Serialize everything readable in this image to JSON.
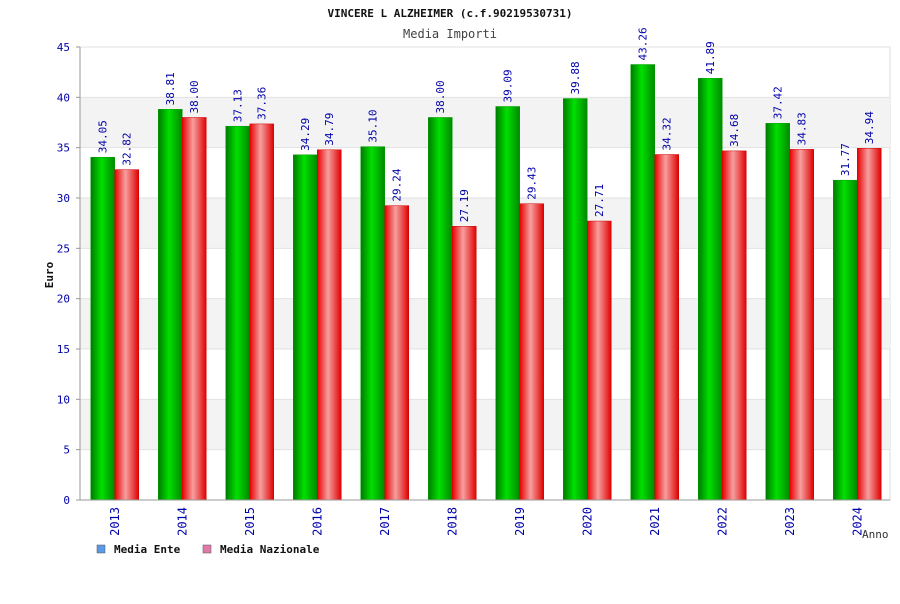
{
  "chart_data": {
    "type": "bar",
    "title": "VINCERE L ALZHEIMER (c.f.90219530731)",
    "subtitle": "Media Importi",
    "xlabel": "Anno",
    "ylabel": "Euro",
    "ylim": [
      0,
      45
    ],
    "yticks": [
      0,
      5,
      10,
      15,
      20,
      25,
      30,
      35,
      40,
      45
    ],
    "grid": true,
    "legend_position": "bottom-left",
    "categories": [
      "2013",
      "2014",
      "2015",
      "2016",
      "2017",
      "2018",
      "2019",
      "2020",
      "2021",
      "2022",
      "2023",
      "2024"
    ],
    "series": [
      {
        "name": "Media Ente",
        "color": "#00b000",
        "legend_color": "#5a9ae6",
        "values": [
          34.05,
          38.81,
          37.13,
          34.29,
          35.1,
          38.0,
          39.09,
          39.88,
          43.26,
          41.89,
          37.42,
          31.77
        ],
        "labels": [
          "34.05",
          "38.81",
          "37.13",
          "34.29",
          "35.10",
          "38.00",
          "39.09",
          "39.88",
          "43.26",
          "41.89",
          "37.42",
          "31.77"
        ]
      },
      {
        "name": "Media Nazionale",
        "color": "#ee0000",
        "legend_color": "#e07aa8",
        "values": [
          32.82,
          38.0,
          37.36,
          34.79,
          29.24,
          27.19,
          29.43,
          27.71,
          34.32,
          34.68,
          34.83,
          34.94
        ],
        "labels": [
          "32.82",
          "38.00",
          "37.36",
          "34.79",
          "29.24",
          "27.19",
          "29.43",
          "27.71",
          "34.32",
          "34.68",
          "34.83",
          "34.94"
        ]
      }
    ]
  }
}
